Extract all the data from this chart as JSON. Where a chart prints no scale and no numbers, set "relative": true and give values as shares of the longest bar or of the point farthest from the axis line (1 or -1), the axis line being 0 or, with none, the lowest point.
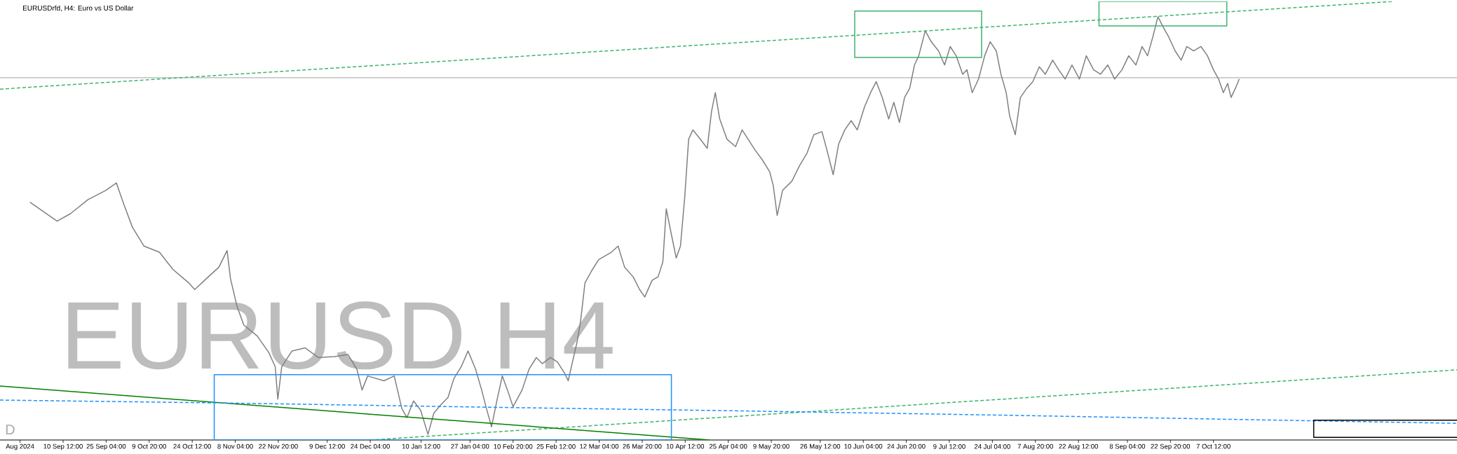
{
  "chart_data": {
    "type": "line",
    "title": "EURUSDrfd, H4: Euro vs US Dollar",
    "annotations": [
      "EURUSD H4",
      "D"
    ],
    "relative": true,
    "xlim": [
      "2024-08-20T00:00",
      "2025-12-29T12:00"
    ],
    "xticks": [
      {
        "value": "2024-08-26T20:00",
        "label": "Aug 2024"
      },
      {
        "value": "2024-09-10T12:00",
        "label": "10 Sep 12:00"
      },
      {
        "value": "2024-09-25T04:00",
        "label": "25 Sep 04:00"
      },
      {
        "value": "2024-10-09T20:00",
        "label": "9 Oct 20:00"
      },
      {
        "value": "2024-10-24T12:00",
        "label": "24 Oct 12:00"
      },
      {
        "value": "2024-11-08T04:00",
        "label": "8 Nov 04:00"
      },
      {
        "value": "2024-11-22T20:00",
        "label": "22 Nov 20:00"
      },
      {
        "value": "2024-12-09T12:00",
        "label": "9 Dec 12:00"
      },
      {
        "value": "2024-12-24T04:00",
        "label": "24 Dec 04:00"
      },
      {
        "value": "2025-01-10T12:00",
        "label": "10 Jan 12:00"
      },
      {
        "value": "2025-01-27T04:00",
        "label": "27 Jan 04:00"
      },
      {
        "value": "2025-02-10T20:00",
        "label": "10 Feb 20:00"
      },
      {
        "value": "2025-02-25T12:00",
        "label": "25 Feb 12:00"
      },
      {
        "value": "2025-03-12T04:00",
        "label": "12 Mar 04:00"
      },
      {
        "value": "2025-03-26T20:00",
        "label": "26 Mar 20:00"
      },
      {
        "value": "2025-04-10T12:00",
        "label": "10 Apr 12:00"
      },
      {
        "value": "2025-04-25T04:00",
        "label": "25 Apr 04:00"
      },
      {
        "value": "2025-05-09T20:00",
        "label": "9 May 20:00"
      },
      {
        "value": "2025-05-26T12:00",
        "label": "26 May 12:00"
      },
      {
        "value": "2025-06-10T04:00",
        "label": "10 Jun 04:00"
      },
      {
        "value": "2025-06-24T20:00",
        "label": "24 Jun 20:00"
      },
      {
        "value": "2025-07-09T12:00",
        "label": "9 Jul 12:00"
      },
      {
        "value": "2025-07-24T04:00",
        "label": "24 Jul 04:00"
      },
      {
        "value": "2025-08-07T20:00",
        "label": "7 Aug 20:00"
      },
      {
        "value": "2025-08-22T12:00",
        "label": "22 Aug 12:00"
      },
      {
        "value": "2025-09-08T04:00",
        "label": "8 Sep 04:00"
      },
      {
        "value": "2025-09-22T20:00",
        "label": "22 Sep 20:00"
      },
      {
        "value": "2025-10-07T12:00",
        "label": "7 Oct 12:00"
      }
    ],
    "ref_lines": [
      {
        "axis": "y",
        "value": 0.826,
        "color": "#b4b4b4"
      }
    ],
    "series": [
      {
        "color": "#808080",
        "line_style": "solid",
        "x": [
          "2024-08-30T05:00",
          "2024-09-03T18:00",
          "2024-09-08T11:00",
          "2024-09-13T00:00",
          "2024-09-19T00:00",
          "2024-09-25T00:00",
          "2024-09-28T16:00",
          "2024-10-01T04:00",
          "2024-10-04T03:00",
          "2024-10-08T02:00",
          "2024-10-13T08:00",
          "2024-10-17T22:00",
          "2024-10-23T08:00",
          "2024-10-25T09:00",
          "2024-10-29T08:00",
          "2024-11-02T14:00",
          "2024-11-05T09:00",
          "2024-11-06T13:00",
          "2024-11-08T18:00",
          "2024-11-11T02:00",
          "2024-11-15T16:00",
          "2024-11-19T15:00",
          "2024-11-21T19:00",
          "2024-11-22T16:00",
          "2024-11-24T00:00",
          "2024-11-27T12:00",
          "2024-12-02T00:00",
          "2024-12-06T12:00",
          "2024-12-12T00:00",
          "2024-12-16T13:00",
          "2024-12-19T15:00",
          "2024-12-21T09:00",
          "2024-12-23T07:00",
          "2024-12-28T20:00",
          "2025-01-01T08:00",
          "2025-01-03T22:00",
          "2025-01-05T16:00",
          "2025-01-07T22:00",
          "2025-01-10T08:00",
          "2025-01-12T20:00",
          "2025-01-14T20:00",
          "2025-01-17T04:00",
          "2025-01-19T16:00",
          "2025-01-21T16:00",
          "2025-01-24T04:00",
          "2025-01-26T12:00",
          "2025-01-29T02:00",
          "2025-01-31T03:00",
          "2025-02-01T18:00",
          "2025-02-03T12:00",
          "2025-02-05T10:00",
          "2025-02-07T04:00",
          "2025-02-08T22:00",
          "2025-02-10T20:00",
          "2025-02-13T22:00",
          "2025-02-16T06:00",
          "2025-02-18T18:00",
          "2025-02-20T19:00",
          "2025-02-23T14:00",
          "2025-02-25T23:00",
          "2025-02-28T10:00",
          "2025-03-01T15:00",
          "2025-03-03T02:00",
          "2025-03-04T16:00",
          "2025-03-05T21:00",
          "2025-03-07T08:00",
          "2025-03-09T13:00",
          "2025-03-12T00:00",
          "2025-03-16T07:00",
          "2025-03-18T15:00",
          "2025-03-20T20:00",
          "2025-03-23T18:00",
          "2025-03-25T23:00",
          "2025-03-27T17:00",
          "2025-03-30T05:00",
          "2025-04-01T06:00",
          "2025-04-02T21:00",
          "2025-04-04T01:00",
          "2025-04-05T12:00",
          "2025-04-07T10:00",
          "2025-04-08T21:00",
          "2025-04-10T08:00",
          "2025-04-11T16:00",
          "2025-04-13T03:00",
          "2025-04-15T15:00",
          "2025-04-18T00:00",
          "2025-04-19T11:00",
          "2025-04-20T18:00",
          "2025-04-22T06:00",
          "2025-04-24T17:00",
          "2025-04-27T16:00",
          "2025-04-29T21:00",
          "2025-05-01T22:00",
          "2025-05-04T10:00",
          "2025-05-06T18:00",
          "2025-05-09T06:00",
          "2025-05-10T12:00",
          "2025-05-11T20:00",
          "2025-05-13T16:00",
          "2025-05-16T20:00",
          "2025-05-19T12:00",
          "2025-05-22T00:00",
          "2025-05-24T08:00",
          "2025-05-27T02:00",
          "2025-05-28T20:00",
          "2025-05-30T22:00",
          "2025-06-01T19:00",
          "2025-06-03T21:00",
          "2025-06-06T01:00",
          "2025-06-08T03:00",
          "2025-06-10T15:00",
          "2025-06-12T16:00",
          "2025-06-14T14:00",
          "2025-06-16T15:00",
          "2025-06-18T20:00",
          "2025-06-20T14:00",
          "2025-06-22T12:00",
          "2025-06-24T06:00",
          "2025-06-26T00:00",
          "2025-06-27T15:00",
          "2025-06-29T02:00",
          "2025-07-01T07:00",
          "2025-07-03T08:00",
          "2025-07-05T20:00",
          "2025-07-07T21:00",
          "2025-07-09T19:00",
          "2025-07-11T20:00",
          "2025-07-14T01:00",
          "2025-07-15T12:00",
          "2025-07-17T07:00",
          "2025-07-19T11:00",
          "2025-07-21T13:00",
          "2025-07-23T10:00",
          "2025-07-25T12:00",
          "2025-07-27T02:00",
          "2025-07-28T21:00",
          "2025-07-30T01:00",
          "2025-07-31T23:00",
          "2025-08-02T17:00",
          "2025-08-04T22:00",
          "2025-08-06T23:00",
          "2025-08-09T04:00",
          "2025-08-11T05:00",
          "2025-08-13T17:00",
          "2025-08-15T18:00",
          "2025-08-17T23:00",
          "2025-08-20T07:00",
          "2025-08-22T20:00",
          "2025-08-25T04:00",
          "2025-08-27T16:00",
          "2025-08-30T00:00",
          "2025-09-01T12:00",
          "2025-09-03T20:00",
          "2025-09-06T08:00",
          "2025-09-08T15:00",
          "2025-09-11T02:00",
          "2025-09-13T04:00",
          "2025-09-15T01:00",
          "2025-09-16T20:00",
          "2025-09-18T14:00",
          "2025-09-20T12:00",
          "2025-09-22T06:00",
          "2025-09-24T11:00",
          "2025-09-26T12:00",
          "2025-09-28T10:00",
          "2025-09-30T18:00",
          "2025-10-03T06:00",
          "2025-10-05T11:00",
          "2025-10-07T12:00",
          "2025-10-09T06:00",
          "2025-10-10T21:00",
          "2025-10-12T08:00",
          "2025-10-13T12:00",
          "2025-10-15T00:00",
          "2025-10-16T07:00"
        ],
        "values": [
          0.542,
          0.521,
          0.499,
          0.516,
          0.548,
          0.569,
          0.586,
          0.538,
          0.485,
          0.442,
          0.428,
          0.389,
          0.358,
          0.343,
          0.368,
          0.394,
          0.432,
          0.368,
          0.305,
          0.262,
          0.237,
          0.199,
          0.167,
          0.093,
          0.167,
          0.203,
          0.21,
          0.188,
          0.19,
          0.195,
          0.161,
          0.114,
          0.146,
          0.135,
          0.146,
          0.072,
          0.051,
          0.089,
          0.068,
          0.013,
          0.061,
          0.08,
          0.097,
          0.14,
          0.167,
          0.203,
          0.161,
          0.114,
          0.072,
          0.03,
          0.093,
          0.146,
          0.114,
          0.076,
          0.114,
          0.161,
          0.188,
          0.174,
          0.188,
          0.178,
          0.152,
          0.135,
          0.178,
          0.224,
          0.273,
          0.358,
          0.385,
          0.411,
          0.428,
          0.442,
          0.394,
          0.372,
          0.343,
          0.326,
          0.364,
          0.372,
          0.406,
          0.527,
          0.478,
          0.415,
          0.442,
          0.554,
          0.686,
          0.707,
          0.686,
          0.665,
          0.749,
          0.792,
          0.732,
          0.686,
          0.669,
          0.707,
          0.686,
          0.66,
          0.639,
          0.612,
          0.58,
          0.512,
          0.569,
          0.59,
          0.626,
          0.654,
          0.696,
          0.703,
          0.66,
          0.605,
          0.675,
          0.707,
          0.728,
          0.707,
          0.76,
          0.792,
          0.817,
          0.781,
          0.732,
          0.77,
          0.724,
          0.781,
          0.802,
          0.855,
          0.876,
          0.933,
          0.908,
          0.887,
          0.855,
          0.897,
          0.876,
          0.834,
          0.844,
          0.792,
          0.823,
          0.876,
          0.908,
          0.887,
          0.834,
          0.792,
          0.739,
          0.696,
          0.781,
          0.802,
          0.817,
          0.851,
          0.834,
          0.866,
          0.844,
          0.823,
          0.855,
          0.823,
          0.876,
          0.844,
          0.834,
          0.855,
          0.823,
          0.844,
          0.876,
          0.855,
          0.897,
          0.876,
          0.919,
          0.965,
          0.94,
          0.919,
          0.887,
          0.866,
          0.897,
          0.887,
          0.897,
          0.876,
          0.844,
          0.823,
          0.792,
          0.813,
          0.781,
          0.802,
          0.823
        ]
      },
      {
        "color": "#3cb371",
        "line_style": "dashed",
        "x": [
          "2024-08-20T00:00",
          "2025-12-08T02:00"
        ],
        "values": [
          0.8,
          1.0
        ]
      },
      {
        "color": "#3cb371",
        "line_style": "dashed",
        "x": [
          "2024-12-24T04:00",
          "2025-12-29T12:00"
        ],
        "values": [
          0,
          0.16
        ]
      },
      {
        "color": "#008000",
        "line_style": "solid",
        "x": [
          "2024-08-20T00:00",
          "2025-04-18T21:00"
        ],
        "values": [
          0.123,
          0
        ]
      },
      {
        "color": "#1e90ff",
        "line_style": "dashed",
        "x": [
          "2024-08-20T00:00",
          "2024-11-08T04:00",
          "2025-01-30T02:00",
          "2025-04-22T23:00",
          "2025-07-24T04:00",
          "2025-10-22T15:00",
          "2025-12-29T12:00"
        ],
        "values": [
          0.091,
          0.084,
          0.075,
          0.067,
          0.057,
          0.046,
          0.038
        ]
      },
      {
        "color": "#3cb371",
        "line_style": "solid",
        "x": [
          "2025-06-07T06:00",
          "2025-07-20T12:00",
          "2025-07-20T12:00",
          "2025-06-07T06:00",
          "2025-06-07T06:00",
          "2025-07-20T12:00"
        ],
        "values": [
          0.978,
          0.978,
          0.872,
          0.872,
          0.978,
          0.978
        ]
      },
      {
        "color": "#3cb371",
        "line_style": "solid",
        "x": [
          "2025-08-29T12:00",
          "2025-10-12T01:00",
          "2025-10-12T01:00",
          "2025-08-29T12:00",
          "2025-08-29T12:00",
          "2025-10-12T01:00"
        ],
        "values": [
          1.0,
          1.0,
          0.944,
          0.944,
          1.0,
          1.0
        ]
      },
      {
        "color": "#1e90ff",
        "line_style": "solid",
        "x": [
          "2024-11-01T00:00",
          "2025-04-05T19:00",
          "2025-04-05T19:00",
          "2024-11-01T00:00",
          "2024-11-01T00:00",
          "2025-04-05T19:00"
        ],
        "values": [
          0.149,
          0.149,
          0,
          0,
          0.149,
          0.149
        ]
      },
      {
        "color": "#000000",
        "line_style": "solid",
        "x": [
          "2025-12-29T12:00",
          "2025-11-10T16:00",
          "2025-11-10T16:00",
          "2025-12-29T12:00"
        ],
        "values": [
          0.045,
          0.045,
          0.006,
          0.006
        ]
      }
    ]
  }
}
